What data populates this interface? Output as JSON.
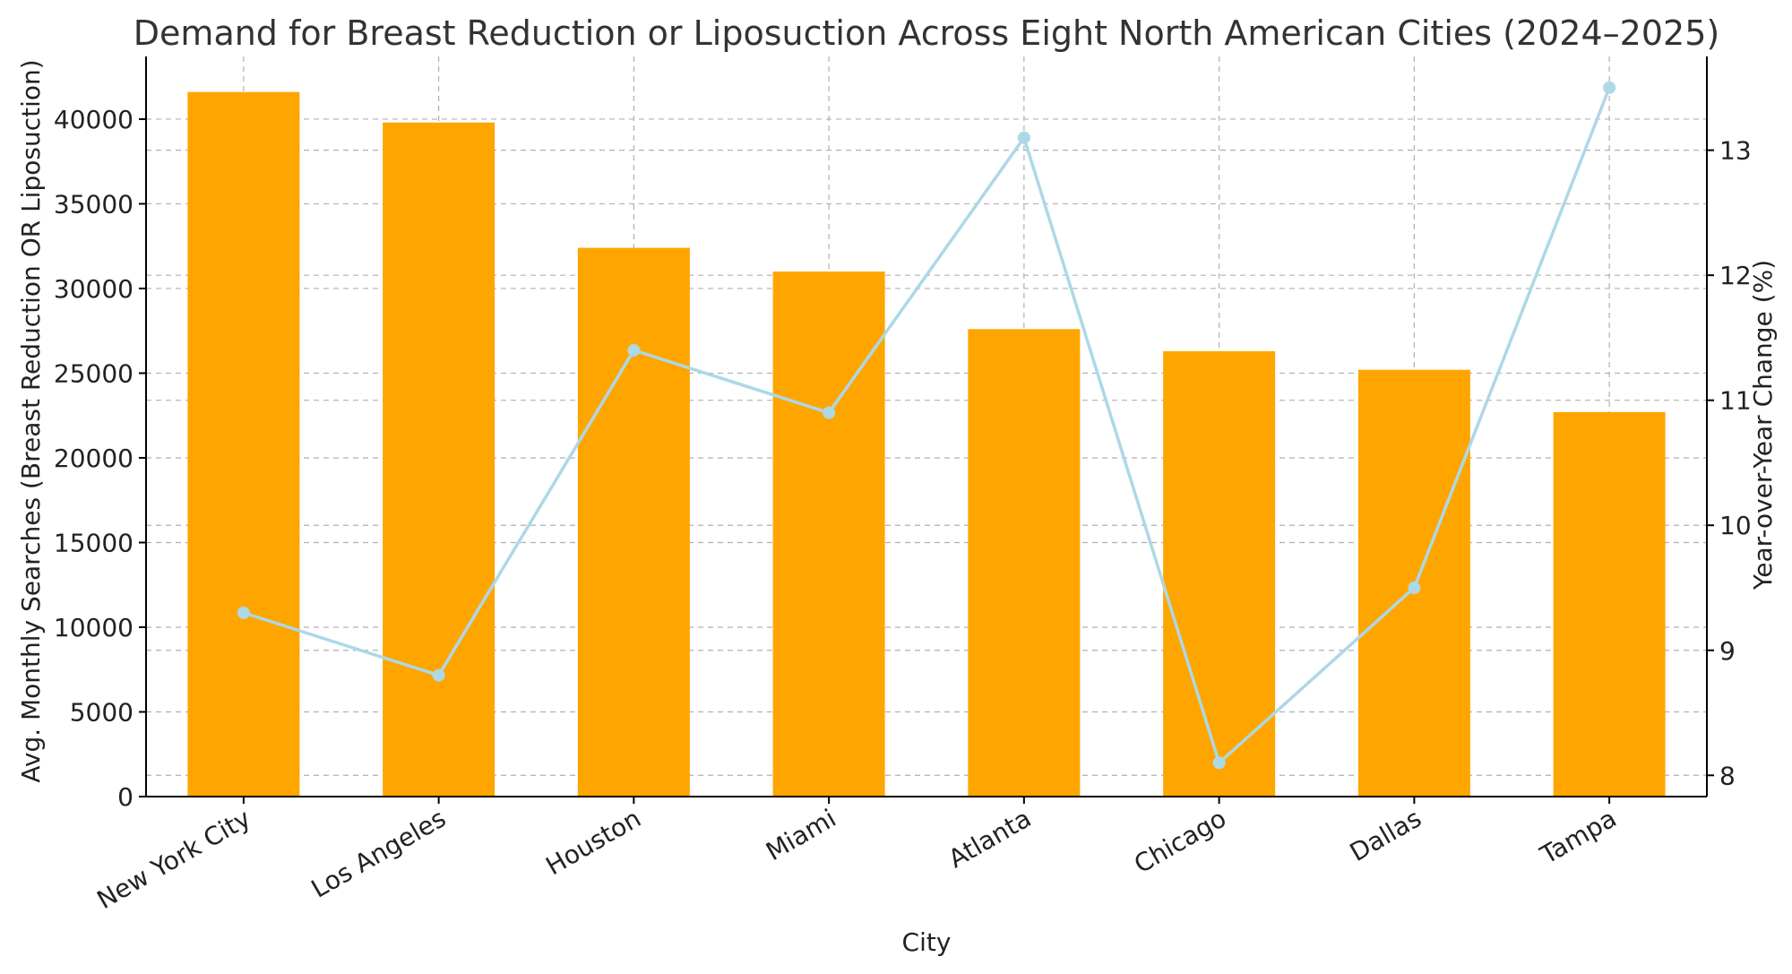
{
  "chart_data": {
    "type": "bar",
    "title": "Demand for Breast Reduction or Liposuction Across Eight North American Cities (2024–2025)",
    "xlabel": "City",
    "ylabel": "Avg. Monthly Searches (Breast Reduction OR Liposuction)",
    "ylabel_right": "Year-over-Year Change (%)",
    "categories": [
      "New York City",
      "Los Angeles",
      "Houston",
      "Miami",
      "Atlanta",
      "Chicago",
      "Dallas",
      "Tampa"
    ],
    "series": [
      {
        "type": "bar",
        "axis": "left",
        "color": "#FFA500",
        "values": [
          41600,
          39800,
          32400,
          31000,
          27600,
          26300,
          25200,
          22700
        ]
      },
      {
        "type": "line",
        "axis": "right",
        "color": "#ADD8E6",
        "values": [
          9.3,
          8.8,
          11.4,
          10.9,
          13.1,
          8.1,
          9.5,
          13.5
        ]
      }
    ],
    "ylim": [
      0,
      43700
    ],
    "yticks": [
      0,
      5000,
      10000,
      15000,
      20000,
      25000,
      30000,
      35000,
      40000
    ],
    "ylim_right": [
      7.83,
      13.75
    ],
    "yticks_right": [
      8,
      9,
      10,
      11,
      12,
      13
    ],
    "grid": true,
    "legend": "none"
  }
}
